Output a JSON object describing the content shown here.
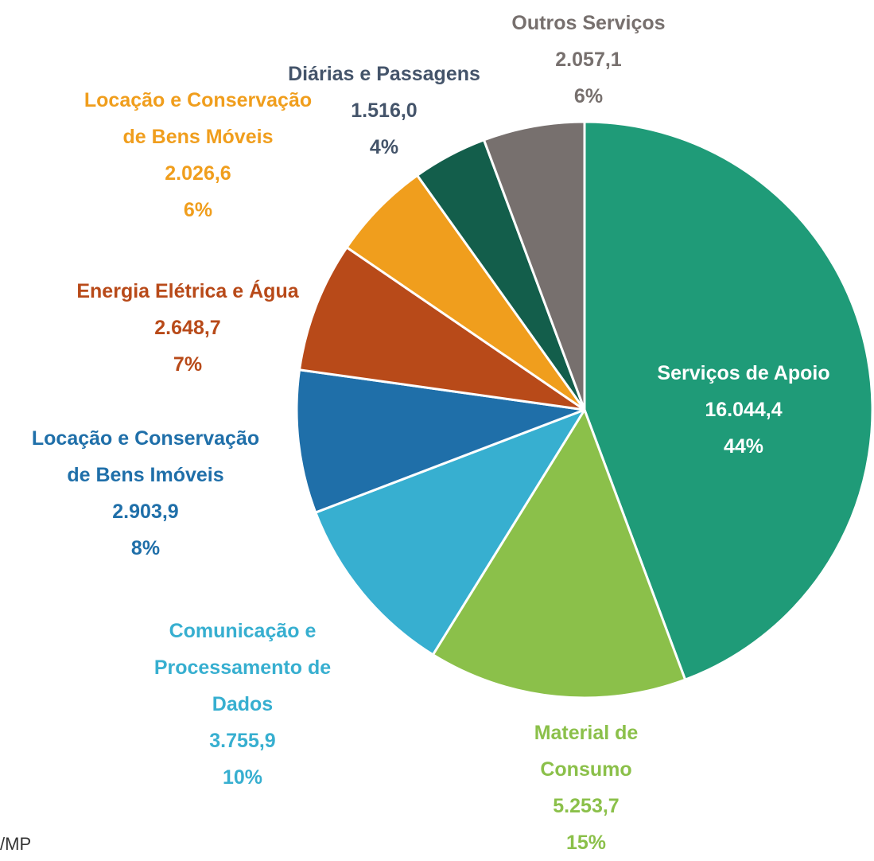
{
  "chart_data": {
    "type": "pie",
    "categories": [
      "Serviços de Apoio",
      "Material de Consumo",
      "Comunicação e Processamento de Dados",
      "Locação e Conservação de Bens Imóveis",
      "Energia Elétrica e Água",
      "Locação e Conservação de Bens Móveis",
      "Diárias e Passagens",
      "Outros Serviços"
    ],
    "values": [
      16044.4,
      5253.7,
      3755.9,
      2903.9,
      2648.7,
      2026.6,
      1516.0,
      2057.1
    ],
    "value_labels": [
      "16.044,4",
      "5.253,7",
      "3.755,9",
      "2.903,9",
      "2.648,7",
      "2.026,6",
      "1.516,0",
      "2.057,1"
    ],
    "percents": [
      44,
      15,
      10,
      8,
      7,
      6,
      4,
      6
    ],
    "percent_labels": [
      "44%",
      "15%",
      "10%",
      "8%",
      "7%",
      "6%",
      "4%",
      "6%"
    ],
    "colors": [
      "#1f9b78",
      "#8bc04a",
      "#37afd0",
      "#1f6fa9",
      "#b84a19",
      "#f09e1d",
      "#135e4b",
      "#77706e"
    ],
    "label_colors": [
      "#ffffff",
      "#8bc04a",
      "#37afd0",
      "#1f6fa9",
      "#b84a19",
      "#f09e1d",
      "#44546a",
      "#77706e"
    ],
    "footnote": "/MP"
  }
}
